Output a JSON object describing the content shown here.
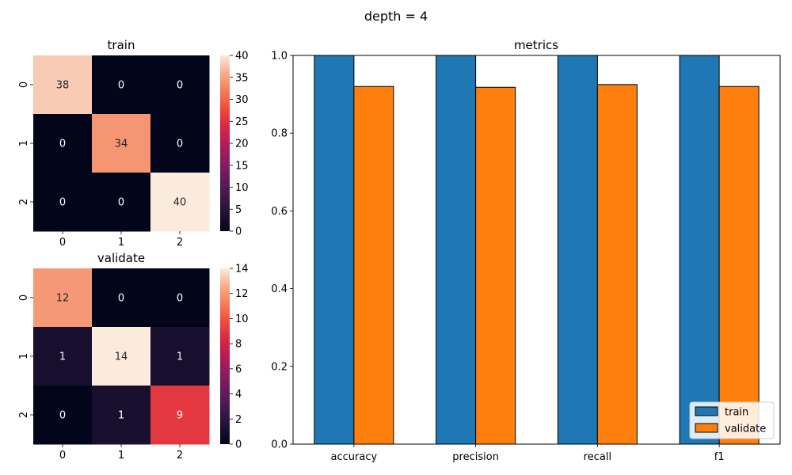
{
  "figure_title": "depth = 4",
  "chart_data": [
    {
      "type": "heatmap",
      "title": "train",
      "x_categories": [
        "0",
        "1",
        "2"
      ],
      "y_categories": [
        "0",
        "1",
        "2"
      ],
      "values": [
        [
          38,
          0,
          0
        ],
        [
          0,
          34,
          0
        ],
        [
          0,
          0,
          40
        ]
      ],
      "colorbar": {
        "min": 0,
        "max": 40,
        "ticks": [
          0,
          5,
          10,
          15,
          20,
          25,
          30,
          35,
          40
        ]
      },
      "colormap": "rocket"
    },
    {
      "type": "heatmap",
      "title": "validate",
      "x_categories": [
        "0",
        "1",
        "2"
      ],
      "y_categories": [
        "0",
        "1",
        "2"
      ],
      "values": [
        [
          12,
          0,
          0
        ],
        [
          1,
          14,
          1
        ],
        [
          0,
          1,
          9
        ]
      ],
      "colorbar": {
        "min": 0,
        "max": 14,
        "ticks": [
          0,
          2,
          4,
          6,
          8,
          10,
          12,
          14
        ]
      },
      "colormap": "rocket"
    },
    {
      "type": "bar",
      "title": "metrics",
      "categories": [
        "accuracy",
        "precision",
        "recall",
        "f1"
      ],
      "series": [
        {
          "name": "train",
          "values": [
            1.0,
            1.0,
            1.0,
            1.0
          ],
          "color": "#1f77b4"
        },
        {
          "name": "validate",
          "values": [
            0.92,
            0.918,
            0.925,
            0.92
          ],
          "color": "#ff7f0e"
        }
      ],
      "ylim": [
        0,
        1.0
      ],
      "yticks": [
        "0.0",
        "0.2",
        "0.4",
        "0.6",
        "0.8",
        "1.0"
      ],
      "legend": "lower-right",
      "grid": false
    }
  ]
}
